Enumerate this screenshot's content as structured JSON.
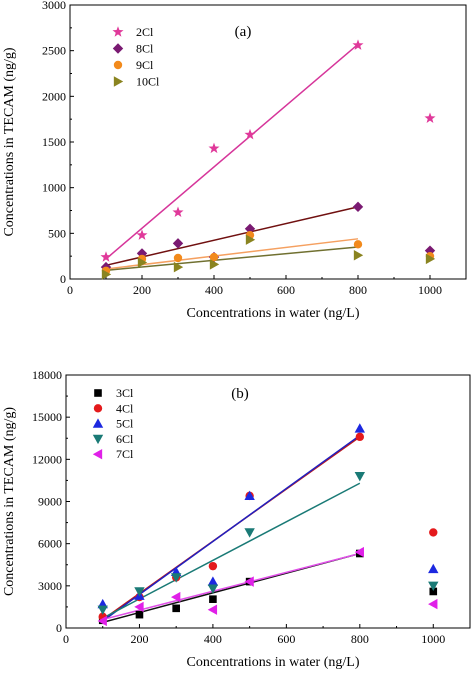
{
  "colors": {
    "2Cl": "#e0399a",
    "8Cl": "#7a1a72",
    "9Cl": "#f28a1c",
    "10Cl": "#8a8420",
    "3Cl": "#000000",
    "4Cl": "#e41a1c",
    "5Cl": "#1c28e0",
    "6Cl": "#1a7a76",
    "7Cl": "#e020e8",
    "fit_a": {
      "2Cl": "#d6359a",
      "8Cl": "#701010",
      "9Cl": "#f5a060",
      "10Cl": "#707030"
    },
    "fit_b": {
      "3Cl": "#101010",
      "4Cl": "#c01818",
      "5Cl": "#2020c0",
      "6Cl": "#1a7a76",
      "7Cl": "#e050e8"
    }
  },
  "chart_data": [
    {
      "type": "scatter",
      "panel_label": "(a)",
      "xlabel": "Concentrations in water (ng/L)",
      "ylabel": "Concentrations in TECAM (ng/g)",
      "xlim": [
        0,
        1100
      ],
      "ylim": [
        0,
        3000
      ],
      "x_ticks": [
        "0",
        "200",
        "400",
        "600",
        "800",
        "1000"
      ],
      "y_ticks": [
        "0",
        "500",
        "1000",
        "1500",
        "2000",
        "2500",
        "3000"
      ],
      "legend_position": "top-left",
      "series": [
        {
          "name": "2Cl",
          "marker": "star",
          "points": [
            [
              100,
              240
            ],
            [
              200,
              480
            ],
            [
              300,
              730
            ],
            [
              400,
              1430
            ],
            [
              500,
              1580
            ],
            [
              800,
              2560
            ],
            [
              1000,
              1760
            ]
          ],
          "fit": [
            [
              100,
              220
            ],
            [
              800,
              2570
            ]
          ]
        },
        {
          "name": "8Cl",
          "marker": "diamond",
          "points": [
            [
              100,
              130
            ],
            [
              200,
              280
            ],
            [
              300,
              390
            ],
            [
              400,
              240
            ],
            [
              500,
              550
            ],
            [
              800,
              790
            ],
            [
              1000,
              310
            ]
          ],
          "fit": [
            [
              100,
              150
            ],
            [
              800,
              790
            ]
          ]
        },
        {
          "name": "9Cl",
          "marker": "circle",
          "points": [
            [
              100,
              90
            ],
            [
              200,
              220
            ],
            [
              300,
              230
            ],
            [
              400,
              240
            ],
            [
              500,
              480
            ],
            [
              800,
              380
            ],
            [
              1000,
              250
            ]
          ],
          "fit": [
            [
              100,
              110
            ],
            [
              800,
              440
            ]
          ]
        },
        {
          "name": "10Cl",
          "marker": "triangle-right",
          "points": [
            [
              100,
              50
            ],
            [
              200,
              180
            ],
            [
              300,
              130
            ],
            [
              400,
              160
            ],
            [
              500,
              430
            ],
            [
              800,
              260
            ],
            [
              1000,
              220
            ]
          ],
          "fit": [
            [
              100,
              95
            ],
            [
              800,
              350
            ]
          ]
        }
      ]
    },
    {
      "type": "scatter",
      "panel_label": "(b)",
      "xlabel": "Concentrations in water (ng/L)",
      "ylabel": "Concentrations in TECAM (ng/g)",
      "xlim": [
        0,
        1100
      ],
      "ylim": [
        0,
        18000
      ],
      "x_ticks": [
        "0",
        "200",
        "400",
        "600",
        "800",
        "1000"
      ],
      "y_ticks": [
        "0",
        "3000",
        "6000",
        "9000",
        "12000",
        "15000",
        "18000"
      ],
      "legend_position": "top-left",
      "series": [
        {
          "name": "3Cl",
          "marker": "square",
          "points": [
            [
              100,
              550
            ],
            [
              200,
              950
            ],
            [
              300,
              1400
            ],
            [
              400,
              2050
            ],
            [
              500,
              3300
            ],
            [
              800,
              5300
            ],
            [
              1000,
              2600
            ]
          ],
          "fit": [
            [
              100,
              400
            ],
            [
              800,
              5300
            ]
          ]
        },
        {
          "name": "4Cl",
          "marker": "circle",
          "points": [
            [
              100,
              800
            ],
            [
              200,
              2200
            ],
            [
              300,
              3600
            ],
            [
              400,
              4400
            ],
            [
              500,
              9400
            ],
            [
              800,
              13600
            ],
            [
              1000,
              6800
            ]
          ],
          "fit": [
            [
              100,
              600
            ],
            [
              800,
              13600
            ]
          ]
        },
        {
          "name": "5Cl",
          "marker": "triangle-up",
          "points": [
            [
              100,
              1700
            ],
            [
              200,
              2300
            ],
            [
              300,
              4000
            ],
            [
              400,
              3300
            ],
            [
              500,
              9400
            ],
            [
              800,
              14200
            ],
            [
              1000,
              4200
            ]
          ],
          "fit": [
            [
              100,
              500
            ],
            [
              800,
              13700
            ]
          ]
        },
        {
          "name": "6Cl",
          "marker": "triangle-down",
          "points": [
            [
              100,
              1300
            ],
            [
              200,
              2600
            ],
            [
              300,
              3600
            ],
            [
              400,
              2800
            ],
            [
              500,
              6800
            ],
            [
              800,
              10800
            ],
            [
              1000,
              3000
            ]
          ],
          "fit": [
            [
              100,
              700
            ],
            [
              800,
              10300
            ]
          ]
        },
        {
          "name": "7Cl",
          "marker": "triangle-left",
          "points": [
            [
              100,
              500
            ],
            [
              200,
              1500
            ],
            [
              300,
              2200
            ],
            [
              400,
              1300
            ],
            [
              500,
              3300
            ],
            [
              800,
              5400
            ],
            [
              1000,
              1700
            ]
          ],
          "fit": [
            [
              100,
              600
            ],
            [
              800,
              5300
            ]
          ]
        }
      ]
    }
  ]
}
